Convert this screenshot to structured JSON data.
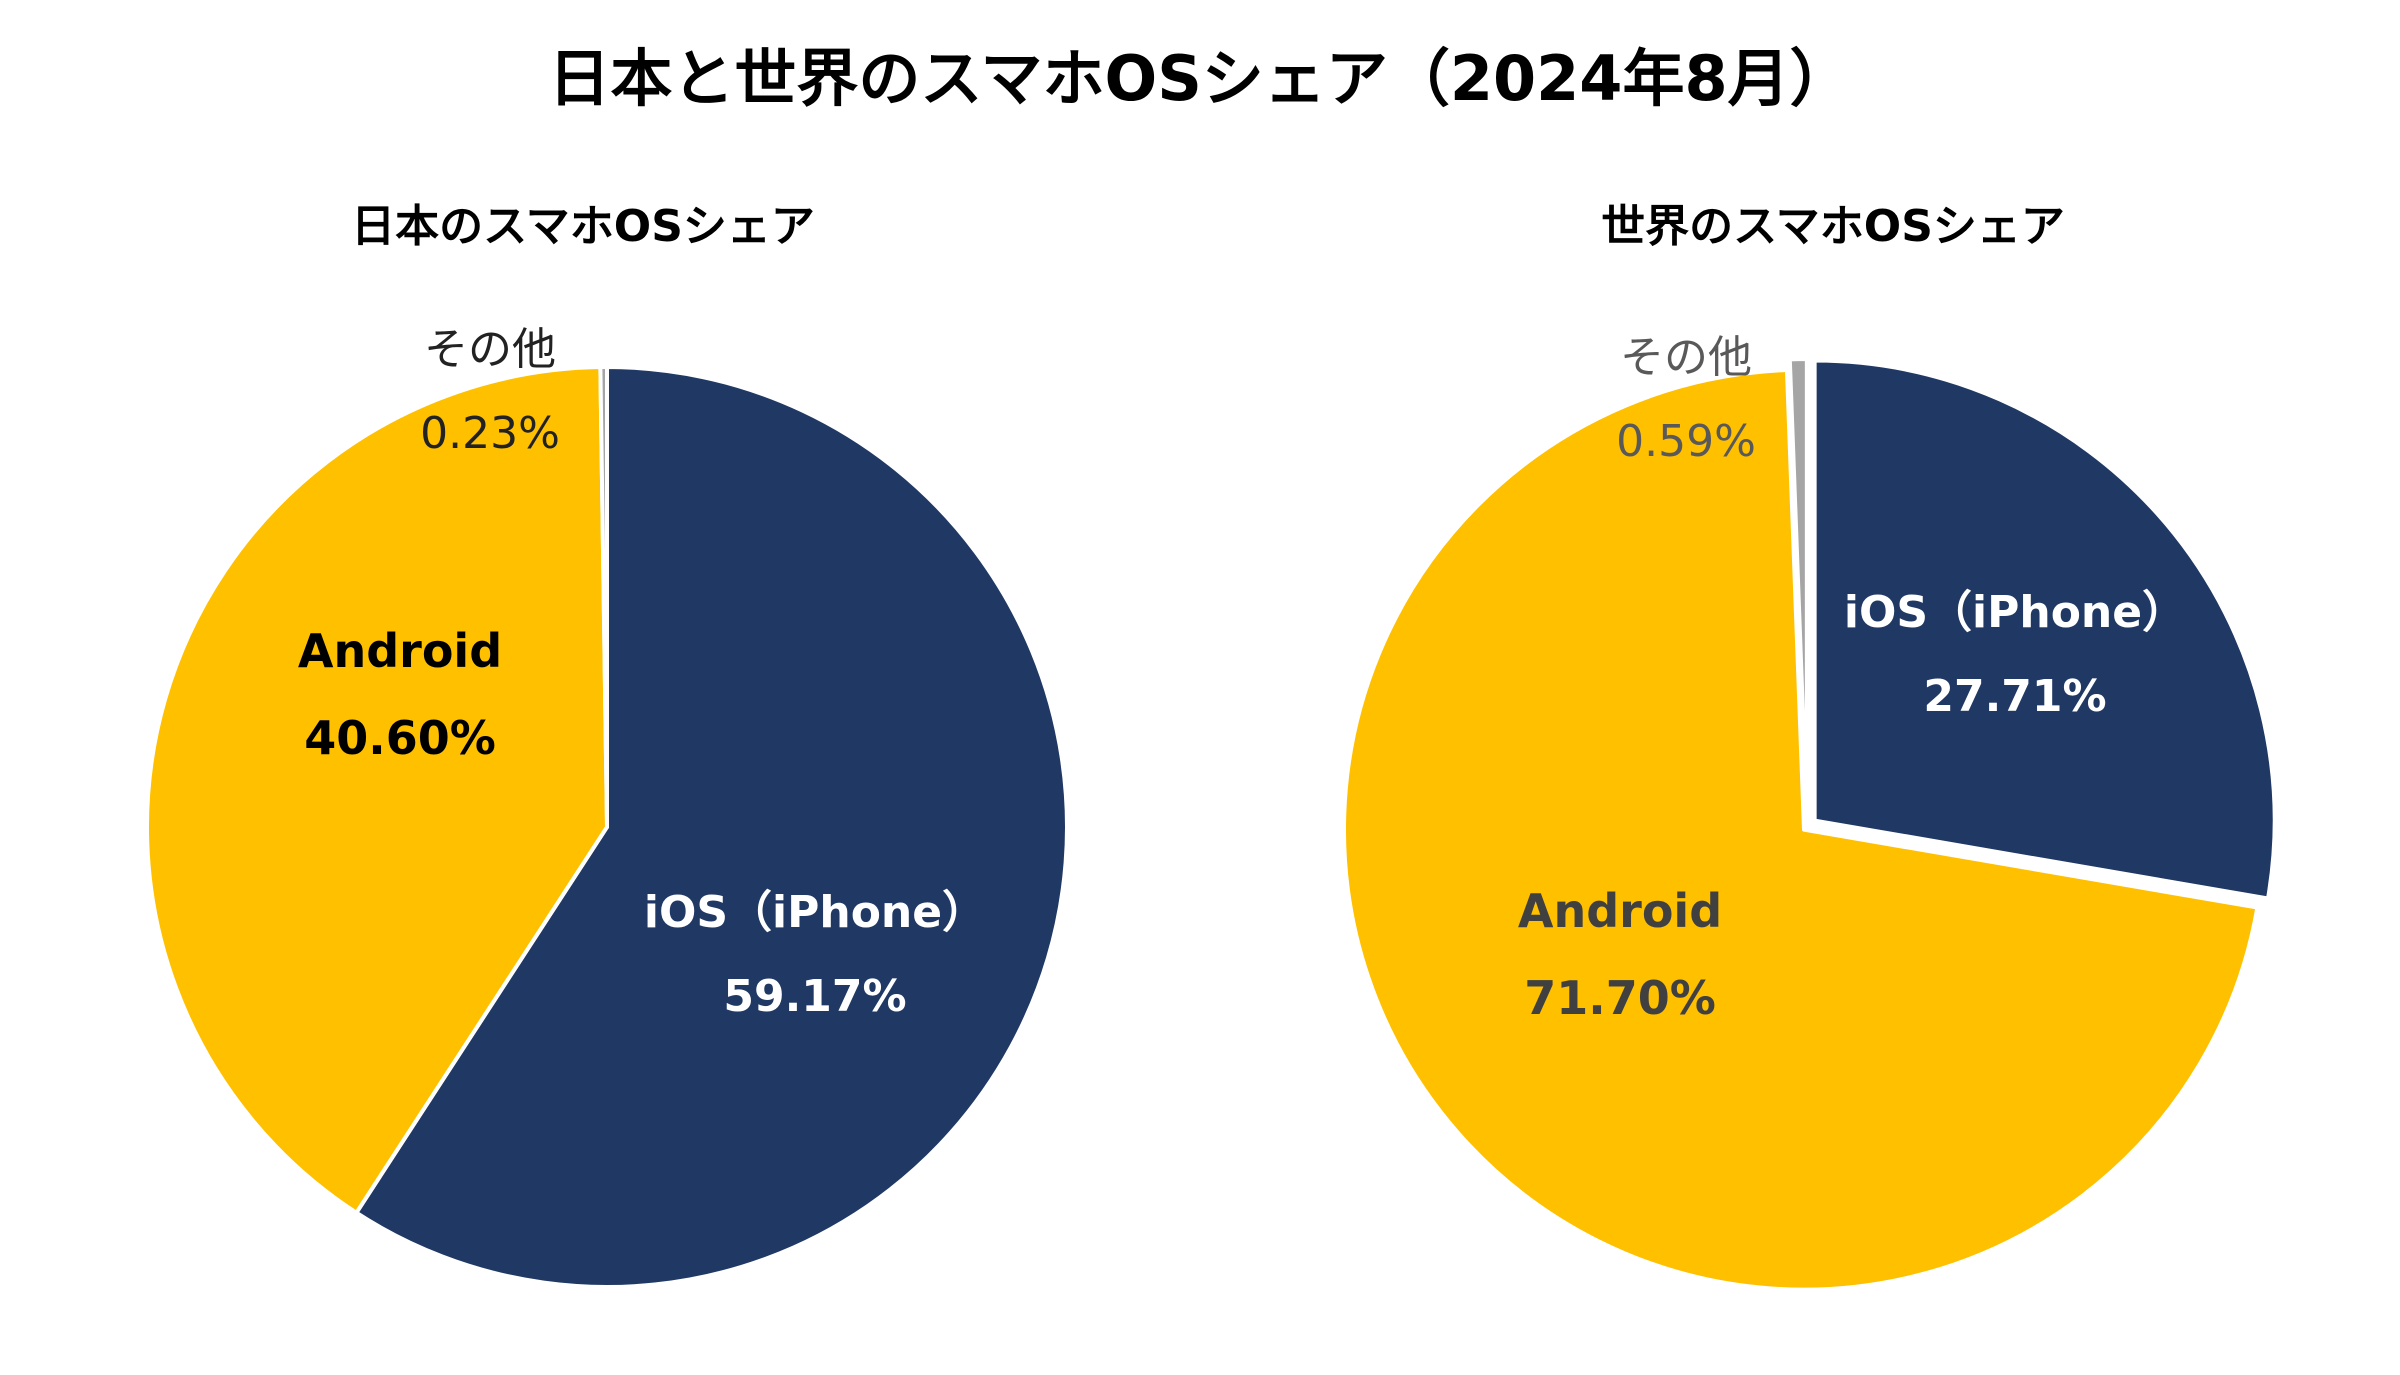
{
  "title": "日本と世界のスマホOSシェア（2024年8月）",
  "chart_data": [
    {
      "type": "pie",
      "title": "日本のスマホOSシェア",
      "start_angle_deg": 0,
      "direction": "clockwise",
      "slices": [
        {
          "name": "iOS（iPhone）",
          "value": 59.17,
          "value_label": "59.17%",
          "color": "#203864",
          "label_color": "#ffffff",
          "bold": true
        },
        {
          "name": "Android",
          "value": 40.6,
          "value_label": "40.60%",
          "color": "#FFC000",
          "label_color": "#000000",
          "bold": true
        },
        {
          "name": "その他",
          "value": 0.23,
          "value_label": "0.23%",
          "color": "#A5A5A5",
          "label_color": "#222222",
          "bold": false
        }
      ]
    },
    {
      "type": "pie",
      "title": "世界のスマホOSシェア",
      "start_angle_deg": 0,
      "direction": "clockwise",
      "exploded": true,
      "slices": [
        {
          "name": "iOS（iPhone）",
          "value": 27.71,
          "value_label": "27.71%",
          "color": "#203864",
          "label_color": "#ffffff",
          "bold": true
        },
        {
          "name": "Android",
          "value": 71.7,
          "value_label": "71.70%",
          "color": "#FFC000",
          "label_color": "#404040",
          "bold": true
        },
        {
          "name": "その他",
          "value": 0.59,
          "value_label": "0.59%",
          "color": "#A5A5A5",
          "label_color": "#595959",
          "bold": false
        }
      ]
    }
  ]
}
